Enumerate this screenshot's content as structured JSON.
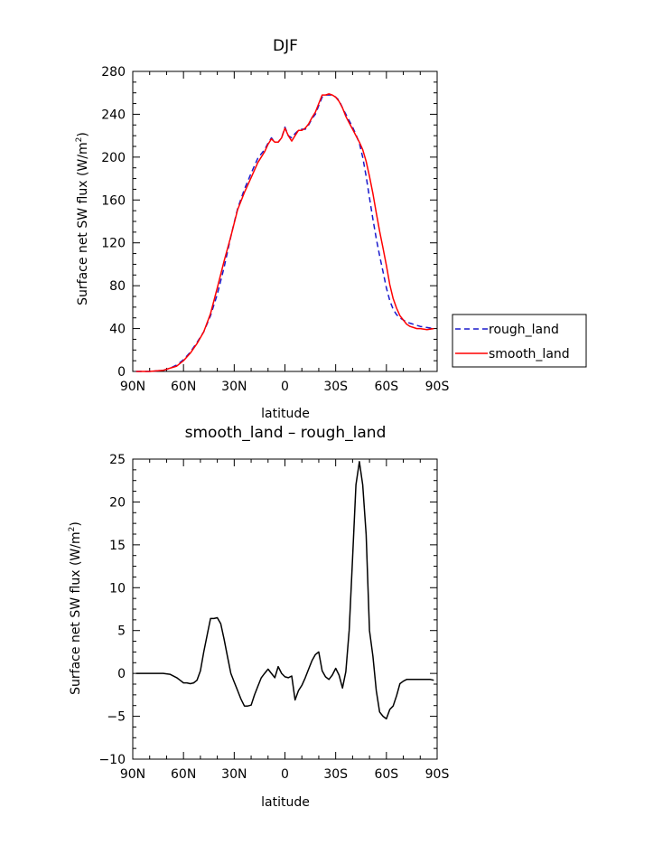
{
  "chart_data": [
    {
      "type": "line",
      "title": "DJF",
      "xlabel": "latitude",
      "ylabel": "Surface net SW flux (W/m²)",
      "ylabel_main": "Surface net SW flux (W/m",
      "ylabel_sup": "2",
      "ylabel_end": ")",
      "xlim": [
        90,
        -90
      ],
      "ylim": [
        0,
        280
      ],
      "xticks": [
        90,
        60,
        30,
        0,
        -30,
        -60,
        -90
      ],
      "xtick_labels": [
        "90N",
        "60N",
        "30N",
        "0",
        "30S",
        "60S",
        "90S"
      ],
      "yticks": [
        0,
        40,
        80,
        120,
        160,
        200,
        240,
        280
      ],
      "ytick_labels": [
        "0",
        "40",
        "80",
        "120",
        "160",
        "200",
        "240",
        "280"
      ],
      "legend_position": "right",
      "series": [
        {
          "name": "rough_land",
          "color": "#1a1acc",
          "dash": "dashed",
          "x": [
            88,
            84,
            80,
            76,
            72,
            68,
            64,
            60,
            56,
            52,
            48,
            44,
            40,
            36,
            32,
            28,
            24,
            20,
            16,
            12,
            10,
            8,
            6,
            4,
            2,
            0,
            -2,
            -4,
            -6,
            -8,
            -10,
            -12,
            -14,
            -16,
            -18,
            -20,
            -22,
            -24,
            -26,
            -28,
            -30,
            -32,
            -34,
            -36,
            -38,
            -40,
            -42,
            -44,
            -46,
            -48,
            -50,
            -52,
            -54,
            -56,
            -58,
            -60,
            -62,
            -64,
            -66,
            -68,
            -70,
            -72,
            -74,
            -76,
            -78,
            -80,
            -84,
            -88
          ],
          "y": [
            0,
            0,
            0,
            0.5,
            1,
            3,
            6,
            11,
            18,
            27,
            37,
            52,
            72,
            97,
            126,
            152,
            170,
            185,
            199,
            207,
            213,
            218,
            214,
            214,
            218,
            228,
            220,
            218,
            222,
            225,
            226,
            226,
            230,
            236,
            240,
            248,
            256,
            258,
            258,
            258,
            256,
            253,
            246,
            240,
            234,
            228,
            221,
            213,
            200,
            182,
            162,
            142,
            124,
            108,
            93,
            78,
            66,
            58,
            53,
            50,
            48,
            46,
            45,
            44,
            43,
            42,
            41,
            40
          ]
        },
        {
          "name": "smooth_land",
          "color": "#ff0000",
          "dash": "solid",
          "x": [
            88,
            84,
            80,
            76,
            72,
            68,
            64,
            60,
            56,
            52,
            48,
            44,
            40,
            36,
            32,
            28,
            24,
            20,
            16,
            12,
            10,
            8,
            6,
            4,
            2,
            0,
            -2,
            -4,
            -6,
            -8,
            -10,
            -12,
            -14,
            -16,
            -18,
            -20,
            -22,
            -24,
            -26,
            -28,
            -30,
            -32,
            -34,
            -36,
            -38,
            -40,
            -42,
            -44,
            -46,
            -48,
            -50,
            -52,
            -54,
            -56,
            -58,
            -60,
            -62,
            -64,
            -66,
            -68,
            -70,
            -72,
            -74,
            -76,
            -78,
            -80,
            -84,
            -88
          ],
          "y": [
            0,
            0,
            0,
            0.5,
            1,
            3,
            5,
            10,
            17,
            26,
            37,
            54,
            78,
            103,
            126,
            151,
            167,
            181,
            195,
            205,
            212,
            217,
            214,
            214,
            218,
            227,
            220,
            215,
            220,
            225,
            225,
            227,
            231,
            237,
            242,
            250,
            258,
            258,
            259,
            258,
            256,
            252,
            246,
            238,
            232,
            226,
            220,
            214,
            207,
            196,
            182,
            166,
            148,
            131,
            115,
            99,
            81,
            68,
            59,
            52,
            48,
            44,
            42,
            41,
            40,
            40,
            39,
            40
          ]
        }
      ]
    },
    {
      "type": "line",
      "title": "smooth_land – rough_land",
      "xlabel": "latitude",
      "ylabel": "Surface net SW flux (W/m²)",
      "ylabel_main": "Surface net SW flux (W/m",
      "ylabel_sup": "2",
      "ylabel_end": ")",
      "xlim": [
        90,
        -90
      ],
      "ylim": [
        -10,
        25
      ],
      "xticks": [
        90,
        60,
        30,
        0,
        -30,
        -60,
        -90
      ],
      "xtick_labels": [
        "90N",
        "60N",
        "30N",
        "0",
        "30S",
        "60S",
        "90S"
      ],
      "yticks": [
        -10,
        -5,
        0,
        5,
        10,
        15,
        20,
        25
      ],
      "ytick_labels": [
        "−10",
        "−5",
        "0",
        "5",
        "10",
        "15",
        "20",
        "25"
      ],
      "series": [
        {
          "color": "#000000",
          "dash": "solid",
          "x": [
            88,
            84,
            80,
            76,
            72,
            68,
            64,
            62,
            60,
            58,
            56,
            54,
            52,
            50,
            48,
            46,
            44,
            42,
            40,
            38,
            36,
            34,
            32,
            30,
            28,
            26,
            24,
            22,
            20,
            18,
            16,
            14,
            12,
            10,
            8,
            6,
            4,
            2,
            0,
            -2,
            -4,
            -6,
            -8,
            -10,
            -12,
            -14,
            -16,
            -18,
            -20,
            -22,
            -24,
            -26,
            -28,
            -30,
            -32,
            -34,
            -36,
            -38,
            -40,
            -42,
            -44,
            -46,
            -48,
            -50,
            -52,
            -54,
            -56,
            -58,
            -60,
            -62,
            -64,
            -66,
            -68,
            -70,
            -72,
            -74,
            -76,
            -78,
            -80,
            -82,
            -84,
            -86,
            -88
          ],
          "y": [
            0,
            0,
            0,
            0,
            0,
            -0.1,
            -0.5,
            -0.8,
            -1.1,
            -1.1,
            -1.2,
            -1.1,
            -0.8,
            0.3,
            2.5,
            4.5,
            6.4,
            6.4,
            6.5,
            5.8,
            4.0,
            2.0,
            0,
            -1.0,
            -2.0,
            -3.0,
            -3.8,
            -3.8,
            -3.7,
            -2.5,
            -1.5,
            -0.5,
            0,
            0.5,
            0,
            -0.5,
            0.8,
            0,
            -0.4,
            -0.5,
            -0.3,
            -3.1,
            -2.0,
            -1.4,
            -0.5,
            0.5,
            1.5,
            2.2,
            2.5,
            0.3,
            -0.4,
            -0.7,
            -0.2,
            0.6,
            -0.2,
            -1.7,
            0.2,
            5.0,
            13.5,
            22.0,
            24.7,
            22.0,
            16.2,
            5.0,
            2.0,
            -2.0,
            -4.5,
            -5.0,
            -5.3,
            -4.2,
            -3.8,
            -2.6,
            -1.2,
            -0.9,
            -0.7,
            -0.7,
            -0.7,
            -0.7,
            -0.7,
            -0.7,
            -0.7,
            -0.7,
            -0.8
          ]
        }
      ]
    }
  ]
}
